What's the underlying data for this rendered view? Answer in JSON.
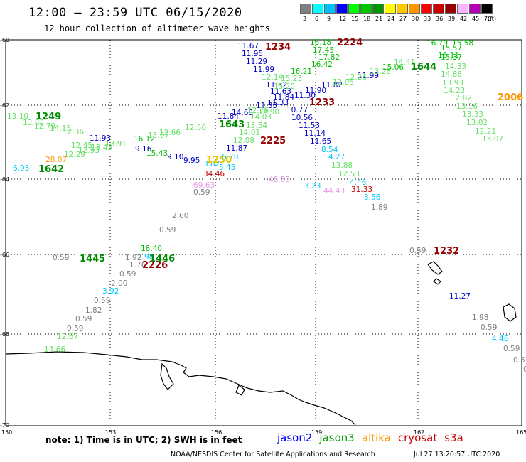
{
  "header": {
    "title": "12:00 – 23:59 UTC 06/15/2020",
    "subtitle": "12 hour collection of altimeter wave heights"
  },
  "legend": {
    "unit_label": "(ft)",
    "colors": [
      "#808080",
      "#00ffff",
      "#00bfff",
      "#0000ff",
      "#00ff00",
      "#00c800",
      "#009600",
      "#ffff00",
      "#ffc800",
      "#ff9600",
      "#ff0000",
      "#c80000",
      "#960000",
      "#ffb4ff",
      "#b400b4",
      "#000000"
    ],
    "labels": [
      "3",
      "6",
      "9",
      "12",
      "15",
      "18",
      "21",
      "24",
      "27",
      "30",
      "33",
      "36",
      "39",
      "42",
      "45",
      "70"
    ]
  },
  "axes": {
    "lat_labels": [
      "-60",
      "-62",
      "-64",
      "-66",
      "-68",
      "-70"
    ],
    "lon_labels": [
      "150",
      "153",
      "156",
      "159",
      "162",
      "165"
    ]
  },
  "observations": [
    {
      "t": "11.67",
      "c": "#0000c8"
    },
    {
      "t": "11.95",
      "c": "#0000c8"
    },
    {
      "t": "11.29",
      "c": "#0000c8"
    },
    {
      "t": "11.99",
      "c": "#0000c8"
    },
    {
      "t": "12.14",
      "c": "#66e066"
    },
    {
      "t": "11.52",
      "c": "#0000c8"
    },
    {
      "t": "11.63",
      "c": "#0000c8"
    },
    {
      "t": "11.84",
      "c": "#0000c8"
    },
    {
      "t": "11.30",
      "c": "#0000c8"
    },
    {
      "t": "11.90",
      "c": "#0000c8"
    },
    {
      "t": "11.82",
      "c": "#0000c8"
    },
    {
      "t": "11.99",
      "c": "#0000c8"
    },
    {
      "t": "10.77",
      "c": "#0000c8"
    },
    {
      "t": "10.56",
      "c": "#0000c8"
    },
    {
      "t": "11.53",
      "c": "#0000c8"
    },
    {
      "t": "11.14",
      "c": "#0000c8"
    },
    {
      "t": "11.65",
      "c": "#0000c8"
    },
    {
      "t": "11.33",
      "c": "#0000c8"
    },
    {
      "t": "11.93",
      "c": "#0000c8"
    },
    {
      "t": "9.16",
      "c": "#0000c8"
    },
    {
      "t": "9.10",
      "c": "#0000c8"
    },
    {
      "t": "9.95",
      "c": "#0000c8"
    },
    {
      "t": "11.87",
      "c": "#0000c8"
    },
    {
      "t": "11.27",
      "c": "#0000c8"
    },
    {
      "t": "11.84",
      "c": "#0000c8"
    },
    {
      "t": "14.68",
      "c": "#0000c8"
    },
    {
      "t": "11.33",
      "c": "#0000c8"
    },
    {
      "t": "16.18",
      "c": "#00c000"
    },
    {
      "t": "17.45",
      "c": "#00c000"
    },
    {
      "t": "17.82",
      "c": "#00c000"
    },
    {
      "t": "16.42",
      "c": "#00c000"
    },
    {
      "t": "16.21",
      "c": "#00c000"
    },
    {
      "t": "15.23",
      "c": "#66e066"
    },
    {
      "t": "15.20",
      "c": "#66e066"
    },
    {
      "t": "12.90",
      "c": "#66e066"
    },
    {
      "t": "12.05",
      "c": "#66e066"
    },
    {
      "t": "12.26",
      "c": "#66e066"
    },
    {
      "t": "13.28",
      "c": "#66e066"
    },
    {
      "t": "15.06",
      "c": "#00c000"
    },
    {
      "t": "14.41",
      "c": "#66e066"
    },
    {
      "t": "16.11",
      "c": "#00c000"
    },
    {
      "t": "16.79",
      "c": "#00c000"
    },
    {
      "t": "15.58",
      "c": "#00c000"
    },
    {
      "t": "15.57",
      "c": "#00c000"
    },
    {
      "t": "15.37",
      "c": "#00c000"
    },
    {
      "t": "14.33",
      "c": "#66e066"
    },
    {
      "t": "14.86",
      "c": "#66e066"
    },
    {
      "t": "13.93",
      "c": "#66e066"
    },
    {
      "t": "14.23",
      "c": "#66e066"
    },
    {
      "t": "12.82",
      "c": "#66e066"
    },
    {
      "t": "13.16",
      "c": "#66e066"
    },
    {
      "t": "13.33",
      "c": "#66e066"
    },
    {
      "t": "13.02",
      "c": "#66e066"
    },
    {
      "t": "12.21",
      "c": "#66e066"
    },
    {
      "t": "13.07",
      "c": "#66e066"
    },
    {
      "t": "12.76",
      "c": "#66e066"
    },
    {
      "t": "14.03",
      "c": "#66e066"
    },
    {
      "t": "13.54",
      "c": "#66e066"
    },
    {
      "t": "14.01",
      "c": "#66e066"
    },
    {
      "t": "12.08",
      "c": "#66e066"
    },
    {
      "t": "12.56",
      "c": "#66e066"
    },
    {
      "t": "12.66",
      "c": "#66e066"
    },
    {
      "t": "13.07",
      "c": "#66e066"
    },
    {
      "t": "16.12",
      "c": "#00c000"
    },
    {
      "t": "15.43",
      "c": "#00c000"
    },
    {
      "t": "13.10",
      "c": "#66e066"
    },
    {
      "t": "13.83",
      "c": "#66e066"
    },
    {
      "t": "12.79",
      "c": "#66e066"
    },
    {
      "t": "14.15",
      "c": "#66e066"
    },
    {
      "t": "12.36",
      "c": "#66e066"
    },
    {
      "t": "12.45",
      "c": "#66e066"
    },
    {
      "t": "12.93",
      "c": "#66e066"
    },
    {
      "t": "13.43",
      "c": "#66e066"
    },
    {
      "t": "13.91",
      "c": "#66e066"
    },
    {
      "t": "12.29",
      "c": "#66e066"
    },
    {
      "t": "13.88",
      "c": "#66e066"
    },
    {
      "t": "12.53",
      "c": "#66e066"
    },
    {
      "t": "18.40",
      "c": "#00c000"
    },
    {
      "t": "12.67",
      "c": "#66e066"
    },
    {
      "t": "14.66",
      "c": "#66e066"
    },
    {
      "t": "8.54",
      "c": "#00c8ff"
    },
    {
      "t": "4.27",
      "c": "#00c8ff"
    },
    {
      "t": "4.46",
      "c": "#00c8ff"
    },
    {
      "t": "3.23",
      "c": "#00c8ff"
    },
    {
      "t": "3.56",
      "c": "#00c8ff"
    },
    {
      "t": "6.78",
      "c": "#00c8ff"
    },
    {
      "t": "3.82",
      "c": "#00c8ff"
    },
    {
      "t": "5.45",
      "c": "#00c8ff"
    },
    {
      "t": "6.93",
      "c": "#00c8ff"
    },
    {
      "t": "3.92",
      "c": "#00c8ff"
    },
    {
      "t": "2.98",
      "c": "#00c8ff"
    },
    {
      "t": "4.46",
      "c": "#00c8ff"
    },
    {
      "t": "28.07",
      "c": "#ff9600"
    },
    {
      "t": "34.46",
      "c": "#c80000"
    },
    {
      "t": "31.33",
      "c": "#c80000"
    },
    {
      "t": "48.53",
      "c": "#e699e6"
    },
    {
      "t": "44.43",
      "c": "#e699e6"
    },
    {
      "t": "69.63",
      "c": "#e699e6"
    },
    {
      "t": "0.59",
      "c": "#808080"
    },
    {
      "t": "2.60",
      "c": "#808080"
    },
    {
      "t": "0.59",
      "c": "#808080"
    },
    {
      "t": "1.89",
      "c": "#808080"
    },
    {
      "t": "0.59",
      "c": "#808080"
    },
    {
      "t": "0.59",
      "c": "#808080"
    },
    {
      "t": "1.92",
      "c": "#808080"
    },
    {
      "t": "1.76",
      "c": "#808080"
    },
    {
      "t": "0.59",
      "c": "#808080"
    },
    {
      "t": "2.00",
      "c": "#808080"
    },
    {
      "t": "0.59",
      "c": "#808080"
    },
    {
      "t": "1.82",
      "c": "#808080"
    },
    {
      "t": "0.59",
      "c": "#808080"
    },
    {
      "t": "0.59",
      "c": "#808080"
    },
    {
      "t": "1.98",
      "c": "#808080"
    },
    {
      "t": "0.59",
      "c": "#808080"
    },
    {
      "t": "0.59",
      "c": "#808080"
    },
    {
      "t": "0.5",
      "c": "#808080"
    },
    {
      "t": "0",
      "c": "#808080"
    }
  ],
  "time_labels": [
    {
      "t": "1234",
      "c": "#960000"
    },
    {
      "t": "2224",
      "c": "#960000"
    },
    {
      "t": "1233",
      "c": "#960000"
    },
    {
      "t": "2225",
      "c": "#960000"
    },
    {
      "t": "1232",
      "c": "#960000"
    },
    {
      "t": "2226",
      "c": "#960000"
    },
    {
      "t": "1644",
      "c": "#008c00"
    },
    {
      "t": "1643",
      "c": "#008c00"
    },
    {
      "t": "1642",
      "c": "#008c00"
    },
    {
      "t": "1249",
      "c": "#008c00"
    },
    {
      "t": "1445",
      "c": "#008c00"
    },
    {
      "t": "1446",
      "c": "#008c00"
    },
    {
      "t": "1250",
      "c": "#e6c800"
    },
    {
      "t": "2006",
      "c": "#ff9600"
    }
  ],
  "footer": {
    "note": "note: 1) Time is in UTC; 2) SWH is in feet",
    "satellites": [
      {
        "name": "jason2",
        "color": "#0000ff"
      },
      {
        "name": "jason3",
        "color": "#00a000"
      },
      {
        "name": "altika",
        "color": "#ff9600"
      },
      {
        "name": "cryosat",
        "color": "#c80000"
      },
      {
        "name": "s3a",
        "color": "#c80000"
      }
    ],
    "credit": "NOAA/NESDIS Center for Satellite Applications and Research",
    "timestamp": "Jul 27 13:20:57 UTC 2020"
  }
}
